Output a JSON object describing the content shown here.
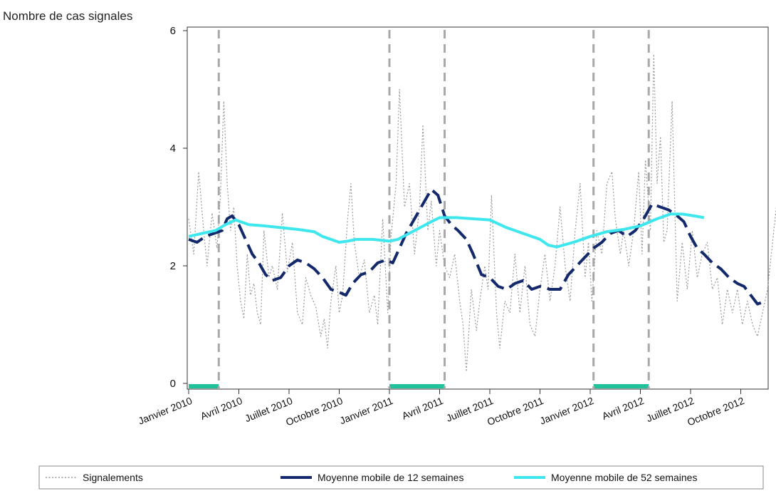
{
  "chart_data": {
    "type": "line",
    "ylabel": "Nombre de cas signales",
    "ylim": [
      0,
      6
    ],
    "yticks": [
      0,
      2,
      4,
      6
    ],
    "x_tick_labels": [
      "Janvier 2010",
      "Avril 2010",
      "Juillet 2010",
      "Octobre 2010",
      "Janvier 2011",
      "Avril 2011",
      "Juillet 2011",
      "Octobre 2011",
      "Janvier 2012",
      "Avril 2012",
      "Juillet 2012",
      "Octobre 2012"
    ],
    "x_unit": "months since Janvier 2010",
    "series": [
      {
        "name": "Signalements",
        "style": "dotted",
        "color": "#9a9a9a",
        "points": [
          [
            0.0,
            2.8
          ],
          [
            0.3,
            2.2
          ],
          [
            0.6,
            3.6
          ],
          [
            0.9,
            2.6
          ],
          [
            1.1,
            2.0
          ],
          [
            1.4,
            2.9
          ],
          [
            1.7,
            2.3
          ],
          [
            1.9,
            3.2
          ],
          [
            2.1,
            4.8
          ],
          [
            2.3,
            3.4
          ],
          [
            2.5,
            2.6
          ],
          [
            2.7,
            3.0
          ],
          [
            2.9,
            2.0
          ],
          [
            3.1,
            1.4
          ],
          [
            3.3,
            1.1
          ],
          [
            3.5,
            2.2
          ],
          [
            3.7,
            1.5
          ],
          [
            3.9,
            1.7
          ],
          [
            4.1,
            1.2
          ],
          [
            4.3,
            1.0
          ],
          [
            4.5,
            2.6
          ],
          [
            4.8,
            1.8
          ],
          [
            5.0,
            2.0
          ],
          [
            5.3,
            1.6
          ],
          [
            5.6,
            2.9
          ],
          [
            5.9,
            1.9
          ],
          [
            6.2,
            2.4
          ],
          [
            6.5,
            1.2
          ],
          [
            6.8,
            1.0
          ],
          [
            7.0,
            1.8
          ],
          [
            7.3,
            1.5
          ],
          [
            7.6,
            1.3
          ],
          [
            7.9,
            0.8
          ],
          [
            8.1,
            1.1
          ],
          [
            8.3,
            0.6
          ],
          [
            8.5,
            1.4
          ],
          [
            8.8,
            2.0
          ],
          [
            9.0,
            1.2
          ],
          [
            9.2,
            1.5
          ],
          [
            9.5,
            2.8
          ],
          [
            9.7,
            3.4
          ],
          [
            9.9,
            2.4
          ],
          [
            10.2,
            1.8
          ],
          [
            10.5,
            2.1
          ],
          [
            10.8,
            1.2
          ],
          [
            11.1,
            1.5
          ],
          [
            11.3,
            1.0
          ],
          [
            11.6,
            2.8
          ],
          [
            11.9,
            1.2
          ],
          [
            12.1,
            2.5
          ],
          [
            12.4,
            3.4
          ],
          [
            12.6,
            5.0
          ],
          [
            12.9,
            3.0
          ],
          [
            13.2,
            3.4
          ],
          [
            13.5,
            2.2
          ],
          [
            13.8,
            3.0
          ],
          [
            14.0,
            4.4
          ],
          [
            14.3,
            2.6
          ],
          [
            14.5,
            3.1
          ],
          [
            14.8,
            2.0
          ],
          [
            15.0,
            2.6
          ],
          [
            15.3,
            2.0
          ],
          [
            15.6,
            1.8
          ],
          [
            15.9,
            2.2
          ],
          [
            16.2,
            1.4
          ],
          [
            16.4,
            1.0
          ],
          [
            16.6,
            0.2
          ],
          [
            16.9,
            1.6
          ],
          [
            17.2,
            0.9
          ],
          [
            17.4,
            1.4
          ],
          [
            17.7,
            2.0
          ],
          [
            17.9,
            1.6
          ],
          [
            18.1,
            3.2
          ],
          [
            18.4,
            1.2
          ],
          [
            18.6,
            0.6
          ],
          [
            18.9,
            1.4
          ],
          [
            19.2,
            1.2
          ],
          [
            19.5,
            2.2
          ],
          [
            19.8,
            1.2
          ],
          [
            20.1,
            2.0
          ],
          [
            20.4,
            1.0
          ],
          [
            20.7,
            0.8
          ],
          [
            21.0,
            1.6
          ],
          [
            21.3,
            2.2
          ],
          [
            21.6,
            1.4
          ],
          [
            21.9,
            2.0
          ],
          [
            22.2,
            3.0
          ],
          [
            22.5,
            2.0
          ],
          [
            22.8,
            1.4
          ],
          [
            23.1,
            2.6
          ],
          [
            23.4,
            3.4
          ],
          [
            23.7,
            1.8
          ],
          [
            23.9,
            2.4
          ],
          [
            24.1,
            1.4
          ],
          [
            24.4,
            2.6
          ],
          [
            24.7,
            2.2
          ],
          [
            25.0,
            3.4
          ],
          [
            25.3,
            3.6
          ],
          [
            25.5,
            2.8
          ],
          [
            25.8,
            2.2
          ],
          [
            26.0,
            2.6
          ],
          [
            26.3,
            2.0
          ],
          [
            26.6,
            2.6
          ],
          [
            26.9,
            3.6
          ],
          [
            27.1,
            2.2
          ],
          [
            27.3,
            3.8
          ],
          [
            27.6,
            2.6
          ],
          [
            27.8,
            5.6
          ],
          [
            28.0,
            3.4
          ],
          [
            28.2,
            4.2
          ],
          [
            28.4,
            2.4
          ],
          [
            28.6,
            2.6
          ],
          [
            28.9,
            4.8
          ],
          [
            29.2,
            1.4
          ],
          [
            29.5,
            2.4
          ],
          [
            29.8,
            1.6
          ],
          [
            30.1,
            2.6
          ],
          [
            30.4,
            1.8
          ],
          [
            30.7,
            2.2
          ],
          [
            31.0,
            2.4
          ],
          [
            31.3,
            1.6
          ],
          [
            31.6,
            1.8
          ],
          [
            31.9,
            1.0
          ],
          [
            32.2,
            1.6
          ],
          [
            32.5,
            1.2
          ],
          [
            32.8,
            1.6
          ],
          [
            33.1,
            1.0
          ],
          [
            33.4,
            1.4
          ],
          [
            33.7,
            1.0
          ],
          [
            34.0,
            0.8
          ],
          [
            34.3,
            1.2
          ],
          [
            34.6,
            1.6
          ],
          [
            34.9,
            2.4
          ],
          [
            35.2,
            3.2
          ],
          [
            35.5,
            2.8
          ],
          [
            35.8,
            2.0
          ]
        ]
      },
      {
        "name": "Moyenne mobile de 12 semaines",
        "style": "dashed",
        "color": "#13296b",
        "points": [
          [
            0.0,
            2.45
          ],
          [
            0.5,
            2.4
          ],
          [
            1.0,
            2.5
          ],
          [
            1.5,
            2.55
          ],
          [
            2.0,
            2.6
          ],
          [
            2.3,
            2.8
          ],
          [
            2.6,
            2.85
          ],
          [
            3.0,
            2.7
          ],
          [
            3.4,
            2.45
          ],
          [
            3.8,
            2.2
          ],
          [
            4.2,
            2.05
          ],
          [
            4.6,
            1.85
          ],
          [
            5.0,
            1.75
          ],
          [
            5.5,
            1.8
          ],
          [
            6.0,
            2.0
          ],
          [
            6.5,
            2.1
          ],
          [
            7.0,
            2.05
          ],
          [
            7.5,
            1.95
          ],
          [
            8.0,
            1.8
          ],
          [
            8.5,
            1.6
          ],
          [
            9.0,
            1.55
          ],
          [
            9.4,
            1.5
          ],
          [
            9.8,
            1.7
          ],
          [
            10.3,
            1.85
          ],
          [
            10.8,
            1.9
          ],
          [
            11.3,
            2.05
          ],
          [
            11.8,
            2.1
          ],
          [
            12.2,
            2.05
          ],
          [
            12.6,
            2.3
          ],
          [
            13.0,
            2.55
          ],
          [
            13.5,
            2.8
          ],
          [
            14.0,
            3.05
          ],
          [
            14.5,
            3.3
          ],
          [
            14.9,
            3.2
          ],
          [
            15.3,
            2.85
          ],
          [
            15.7,
            2.7
          ],
          [
            16.1,
            2.6
          ],
          [
            16.6,
            2.45
          ],
          [
            17.0,
            2.2
          ],
          [
            17.5,
            1.85
          ],
          [
            18.0,
            1.8
          ],
          [
            18.5,
            1.65
          ],
          [
            19.0,
            1.6
          ],
          [
            19.5,
            1.7
          ],
          [
            20.0,
            1.75
          ],
          [
            20.5,
            1.6
          ],
          [
            21.0,
            1.65
          ],
          [
            21.6,
            1.6
          ],
          [
            22.2,
            1.6
          ],
          [
            22.7,
            1.85
          ],
          [
            23.2,
            2.0
          ],
          [
            23.7,
            2.15
          ],
          [
            24.2,
            2.3
          ],
          [
            24.7,
            2.4
          ],
          [
            25.2,
            2.55
          ],
          [
            25.7,
            2.6
          ],
          [
            26.2,
            2.5
          ],
          [
            26.7,
            2.6
          ],
          [
            27.2,
            2.8
          ],
          [
            27.7,
            3.05
          ],
          [
            28.2,
            3.0
          ],
          [
            28.7,
            2.95
          ],
          [
            29.2,
            2.85
          ],
          [
            29.6,
            2.75
          ],
          [
            30.0,
            2.5
          ],
          [
            30.4,
            2.3
          ],
          [
            30.8,
            2.2
          ],
          [
            31.3,
            2.05
          ],
          [
            31.8,
            1.95
          ],
          [
            32.3,
            1.8
          ],
          [
            32.8,
            1.7
          ],
          [
            33.2,
            1.65
          ],
          [
            33.6,
            1.5
          ],
          [
            34.0,
            1.35
          ],
          [
            34.5,
            1.4
          ]
        ]
      },
      {
        "name": "Moyenne mobile de 52 semaines",
        "style": "solid",
        "color": "#3ee6ee",
        "points": [
          [
            0.0,
            2.5
          ],
          [
            0.8,
            2.55
          ],
          [
            1.6,
            2.6
          ],
          [
            2.2,
            2.7
          ],
          [
            2.8,
            2.78
          ],
          [
            3.6,
            2.7
          ],
          [
            4.5,
            2.68
          ],
          [
            5.5,
            2.65
          ],
          [
            6.5,
            2.62
          ],
          [
            7.5,
            2.58
          ],
          [
            8.0,
            2.5
          ],
          [
            8.5,
            2.45
          ],
          [
            9.0,
            2.4
          ],
          [
            9.5,
            2.42
          ],
          [
            10.0,
            2.45
          ],
          [
            11.0,
            2.45
          ],
          [
            12.0,
            2.42
          ],
          [
            12.5,
            2.45
          ],
          [
            13.5,
            2.6
          ],
          [
            14.5,
            2.75
          ],
          [
            15.0,
            2.82
          ],
          [
            16.0,
            2.82
          ],
          [
            17.0,
            2.8
          ],
          [
            18.0,
            2.78
          ],
          [
            19.0,
            2.65
          ],
          [
            20.0,
            2.55
          ],
          [
            21.0,
            2.45
          ],
          [
            21.5,
            2.35
          ],
          [
            22.0,
            2.32
          ],
          [
            23.0,
            2.4
          ],
          [
            24.0,
            2.5
          ],
          [
            25.0,
            2.58
          ],
          [
            26.0,
            2.62
          ],
          [
            27.0,
            2.68
          ],
          [
            28.0,
            2.8
          ],
          [
            28.8,
            2.88
          ],
          [
            29.5,
            2.88
          ],
          [
            30.2,
            2.85
          ],
          [
            30.8,
            2.82
          ]
        ]
      }
    ],
    "vertical_markers": [
      1.8,
      12.0,
      15.3,
      24.2,
      27.5
    ],
    "shaded_periods": [
      [
        0.0,
        1.8
      ],
      [
        12.0,
        15.3
      ],
      [
        24.2,
        27.5
      ]
    ],
    "shaded_color": "#1fc29a",
    "legend_position": "bottom"
  }
}
